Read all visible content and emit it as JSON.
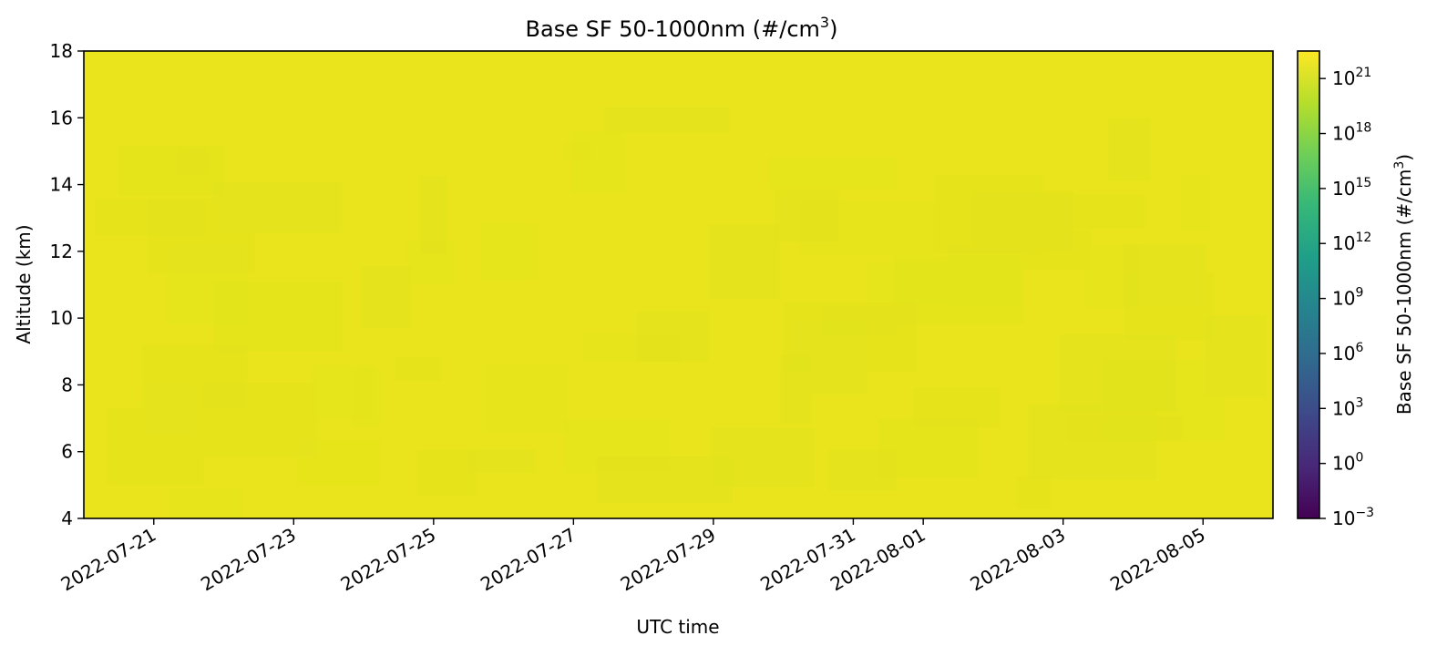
{
  "chart_data": {
    "type": "heatmap",
    "title": "Base SF 50-1000nm (#/cm³)",
    "title_base": "Base SF 50-1000nm (#/cm",
    "title_sup": "3",
    "title_tail": ")",
    "xlabel": "UTC time",
    "ylabel": "Altitude (km)",
    "colorbar_label": "Base SF 50-1000nm (#/cm³)",
    "colorbar_label_base": "Base SF 50-1000nm (#/cm",
    "colorbar_label_sup": "3",
    "colorbar_label_tail": ")",
    "xlim": [
      "2022-07-20",
      "2022-08-06"
    ],
    "ylim": [
      4,
      18
    ],
    "x_ticks": [
      "2022-07-21",
      "2022-07-23",
      "2022-07-25",
      "2022-07-27",
      "2022-07-29",
      "2022-07-31",
      "2022-08-01",
      "2022-08-03",
      "2022-08-05"
    ],
    "y_ticks": [
      4,
      6,
      8,
      10,
      12,
      14,
      16,
      18
    ],
    "color_scale": "log",
    "colormap": "viridis",
    "clim_exponent": [
      -3,
      22.5
    ],
    "colorbar_ticks": [
      {
        "base": "10",
        "exp": "−3",
        "value": -3
      },
      {
        "base": "10",
        "exp": "0",
        "value": 0
      },
      {
        "base": "10",
        "exp": "3",
        "value": 3
      },
      {
        "base": "10",
        "exp": "6",
        "value": 6
      },
      {
        "base": "10",
        "exp": "9",
        "value": 9
      },
      {
        "base": "10",
        "exp": "12",
        "value": 12
      },
      {
        "base": "10",
        "exp": "15",
        "value": 15
      },
      {
        "base": "10",
        "exp": "18",
        "value": 18
      },
      {
        "base": "10",
        "exp": "21",
        "value": 21
      }
    ],
    "field_value_exponent": 22,
    "colors": {
      "field": "#e9e41b",
      "field_dim": "#e3e31c",
      "viridis": [
        "#440154",
        "#482878",
        "#3e4989",
        "#31688e",
        "#26828e",
        "#1f9e89",
        "#35b779",
        "#6ece58",
        "#b5de2b",
        "#fde725"
      ]
    }
  }
}
